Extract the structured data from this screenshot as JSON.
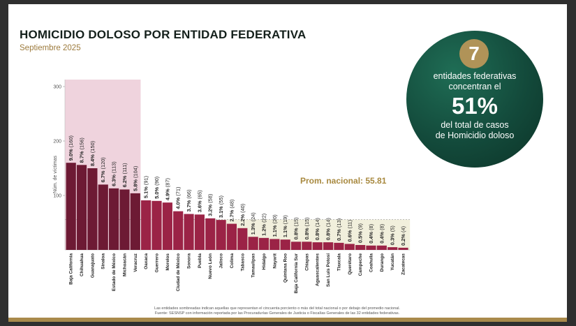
{
  "slide": {
    "title": "HOMICIDIO DOLOSO POR ENTIDAD FEDERATIVA",
    "subtitle": "Septiembre 2025"
  },
  "info": {
    "number": "7",
    "line1": "entidades federativas",
    "line2": "concentran el",
    "percent": "51%",
    "line3": "del total de casos",
    "line4": "de Homicidio doloso"
  },
  "notes": {
    "line1": "Las entidades sombreadas indican aquellas que representan el cincuenta porciento o más del total nacional o por debajo del promedio nacional.",
    "line2": "Fuente: SESNSP con información reportada por las Procuradurías Generales de Justicia o Fiscalías Generales de las 32 entidades federativas."
  },
  "colors": {
    "bar_top": "#6d1a34",
    "bar_rest": "#9b2346",
    "highlight_top": "#efd3dd",
    "highlight_low": "#f1efdc",
    "average_text": "#a8893f"
  },
  "chart_data": {
    "type": "bar",
    "title": "",
    "xlabel": "",
    "ylabel": "Núm. de víctimas",
    "ylim": [
      0,
      300
    ],
    "yticks": [
      100,
      200,
      300
    ],
    "average": 55.81,
    "average_label": "Prom. nacional: 55.81",
    "top_group_count": 7,
    "categories": [
      "Baja California",
      "Chihuahua",
      "Guanajuato",
      "Sinaloa",
      "Estado de México",
      "Michoacán",
      "Veracruz",
      "Oaxaca",
      "Guerrero",
      "Morelos",
      "Ciudad de México",
      "Sonora",
      "Puebla",
      "Nuevo León",
      "Jalisco",
      "Colima",
      "Tabasco",
      "Tamaulipas",
      "Hidalgo",
      "Nayarit",
      "Quintana Roo",
      "Baja California Sur",
      "Chiapas",
      "Aguascalientes",
      "San Luis Potosí",
      "Tlaxcala",
      "Querétaro",
      "Campeche",
      "Coahuila",
      "Durango",
      "Yucatán",
      "Zacatecas"
    ],
    "values": [
      160,
      156,
      150,
      120,
      113,
      111,
      104,
      91,
      90,
      87,
      71,
      66,
      65,
      58,
      55,
      48,
      40,
      24,
      22,
      20,
      19,
      15,
      15,
      14,
      14,
      13,
      11,
      9,
      8,
      8,
      5,
      4
    ],
    "percents": [
      "9.0%",
      "8.7%",
      "8.4%",
      "6.7%",
      "6.3%",
      "6.2%",
      "5.8%",
      "5.1%",
      "5.0%",
      "4.9%",
      "4.0%",
      "3.7%",
      "3.6%",
      "3.2%",
      "3.1%",
      "2.7%",
      "2.2%",
      "1.3%",
      "1.2%",
      "1.1%",
      "1.1%",
      "0.8%",
      "0.8%",
      "0.8%",
      "0.8%",
      "0.7%",
      "0.6%",
      "0.5%",
      "0.4%",
      "0.4%",
      "0.3%",
      "0.2%"
    ],
    "counts": [
      "(160)",
      "(156)",
      "(150)",
      "(120)",
      "(113)",
      "(111)",
      "(104)",
      "(91)",
      "(90)",
      "(87)",
      "(71)",
      "(66)",
      "(65)",
      "(58)",
      "(55)",
      "(48)",
      "(40)",
      "(24)",
      "(22)",
      "(20)",
      "(19)",
      "(15)",
      "(15)",
      "(14)",
      "(14)",
      "(13)",
      "(11)",
      "(9)",
      "(8)",
      "(8)",
      "(5)",
      "(4)"
    ]
  }
}
